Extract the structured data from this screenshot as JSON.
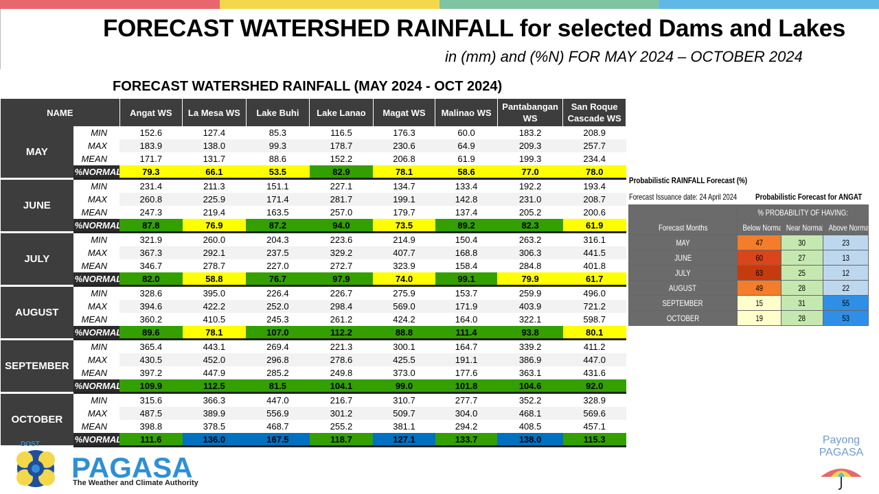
{
  "header": {
    "title": "FORECAST WATERSHED RAINFALL  for selected Dams and Lakes",
    "subtitle": "in (mm) and (%N) FOR MAY 2024 – OCTOBER 2024",
    "table_title": "FORECAST WATERSHED RAINFALL (MAY 2024 - OCT 2024)"
  },
  "topbar_colors": [
    "#e8666d",
    "#f4d84c",
    "#7fc4a0",
    "#5fb8e6"
  ],
  "colors": {
    "yellow": "#ffff00",
    "green": "#33a000",
    "blue": "#0070c0",
    "header_bg": "#3d3d3d"
  },
  "table": {
    "name_header": "NAME",
    "columns": [
      "Angat WS",
      "La Mesa WS",
      "Lake Buhi",
      "Lake Lanao",
      "Magat WS",
      "Malinao WS",
      "Pantabangan WS",
      "San Roque Cascade WS"
    ],
    "stat_labels": [
      "MIN",
      "MAX",
      "MEAN",
      "%NORMAL"
    ],
    "months": [
      {
        "name": "MAY",
        "min": [
          "152.6",
          "127.4",
          "85.3",
          "116.5",
          "176.3",
          "60.0",
          "183.2",
          "208.9"
        ],
        "max": [
          "183.9",
          "138.0",
          "99.3",
          "178.7",
          "230.6",
          "64.9",
          "209.3",
          "257.7"
        ],
        "mean": [
          "171.7",
          "131.7",
          "88.6",
          "152.2",
          "206.8",
          "61.9",
          "199.3",
          "234.4"
        ],
        "normal": [
          "79.3",
          "66.1",
          "53.5",
          "82.9",
          "78.1",
          "58.6",
          "77.0",
          "78.0"
        ],
        "normal_colors": [
          "yellow",
          "yellow",
          "yellow",
          "green",
          "yellow",
          "yellow",
          "yellow",
          "yellow"
        ]
      },
      {
        "name": "JUNE",
        "min": [
          "231.4",
          "211.3",
          "151.1",
          "227.1",
          "134.7",
          "133.4",
          "192.2",
          "193.4"
        ],
        "max": [
          "260.8",
          "225.9",
          "171.4",
          "281.7",
          "199.1",
          "142.8",
          "231.0",
          "208.7"
        ],
        "mean": [
          "247.3",
          "219.4",
          "163.5",
          "257.0",
          "179.7",
          "137.4",
          "205.2",
          "200.6"
        ],
        "normal": [
          "87.8",
          "76.9",
          "87.2",
          "94.0",
          "73.5",
          "89.2",
          "82.3",
          "61.9"
        ],
        "normal_colors": [
          "green",
          "yellow",
          "green",
          "green",
          "yellow",
          "green",
          "green",
          "yellow"
        ]
      },
      {
        "name": "JULY",
        "min": [
          "321.9",
          "260.0",
          "204.3",
          "223.6",
          "214.9",
          "150.4",
          "263.2",
          "316.1"
        ],
        "max": [
          "367.3",
          "292.1",
          "237.5",
          "329.2",
          "407.7",
          "168.8",
          "306.3",
          "441.5"
        ],
        "mean": [
          "346.7",
          "278.7",
          "227.0",
          "272.7",
          "323.9",
          "158.4",
          "284.8",
          "401.8"
        ],
        "normal": [
          "82.0",
          "58.8",
          "76.7",
          "97.9",
          "74.0",
          "99.1",
          "79.9",
          "61.7"
        ],
        "normal_colors": [
          "green",
          "yellow",
          "green",
          "green",
          "yellow",
          "green",
          "yellow",
          "yellow"
        ]
      },
      {
        "name": "AUGUST",
        "min": [
          "328.6",
          "395.0",
          "226.4",
          "226.7",
          "275.9",
          "153.7",
          "259.9",
          "496.0"
        ],
        "max": [
          "394.6",
          "422.2",
          "252.0",
          "298.4",
          "569.0",
          "171.9",
          "403.9",
          "721.2"
        ],
        "mean": [
          "360.2",
          "410.5",
          "245.3",
          "261.2",
          "424.2",
          "164.0",
          "322.1",
          "598.7"
        ],
        "normal": [
          "89.6",
          "78.1",
          "107.0",
          "112.2",
          "88.8",
          "111.4",
          "93.8",
          "80.1"
        ],
        "normal_colors": [
          "green",
          "yellow",
          "green",
          "green",
          "green",
          "green",
          "green",
          "yellow"
        ]
      },
      {
        "name": "SEPTEMBER",
        "min": [
          "365.4",
          "443.1",
          "269.4",
          "221.3",
          "300.1",
          "164.7",
          "339.2",
          "411.2"
        ],
        "max": [
          "430.5",
          "452.0",
          "296.8",
          "278.6",
          "425.5",
          "191.1",
          "386.9",
          "447.0"
        ],
        "mean": [
          "397.2",
          "447.9",
          "285.2",
          "249.8",
          "373.0",
          "177.6",
          "363.1",
          "431.6"
        ],
        "normal": [
          "109.9",
          "112.5",
          "81.5",
          "104.1",
          "99.0",
          "101.8",
          "104.6",
          "92.0"
        ],
        "normal_colors": [
          "green",
          "green",
          "green",
          "green",
          "green",
          "green",
          "green",
          "green"
        ]
      },
      {
        "name": "OCTOBER",
        "min": [
          "315.6",
          "366.3",
          "447.0",
          "216.7",
          "310.7",
          "277.7",
          "352.2",
          "328.9"
        ],
        "max": [
          "487.5",
          "389.9",
          "556.9",
          "301.2",
          "509.7",
          "304.0",
          "468.1",
          "569.6"
        ],
        "mean": [
          "398.8",
          "378.5",
          "468.7",
          "255.2",
          "381.1",
          "294.2",
          "408.5",
          "457.1"
        ],
        "normal": [
          "111.6",
          "136.0",
          "167.5",
          "118.7",
          "127.1",
          "133.7",
          "138.0",
          "115.3"
        ],
        "normal_colors": [
          "green",
          "blue",
          "blue",
          "green",
          "blue",
          "green",
          "blue",
          "green"
        ]
      }
    ]
  },
  "probabilistic": {
    "title": "Probabilistic RAINFALL Forecast (%)",
    "issuance": "Forecast Issuance date: 24 April 2024",
    "angat_title": "Probabilistic Forecast for ANGAT",
    "prob_header": "% PROBABILITY OF HAVING:",
    "col_months": "Forecast Months",
    "col_below": "Below Normal",
    "col_near": "Near Normal",
    "col_above": "Above Normal",
    "rows": [
      {
        "month": "MAY",
        "below": "47",
        "near": "30",
        "above": "23",
        "below_color": "#f47d2b",
        "near_color": "#c5e8b0",
        "above_color": "#bdd7ee"
      },
      {
        "month": "JUNE",
        "below": "60",
        "near": "27",
        "above": "13",
        "below_color": "#d9461c",
        "near_color": "#c5e8b0",
        "above_color": "#bdd7ee"
      },
      {
        "month": "JULY",
        "below": "63",
        "near": "25",
        "above": "12",
        "below_color": "#c43c0e",
        "near_color": "#c5e8b0",
        "above_color": "#bdd7ee"
      },
      {
        "month": "AUGUST",
        "below": "49",
        "near": "28",
        "above": "22",
        "below_color": "#f47d2b",
        "near_color": "#c5e8b0",
        "above_color": "#bdd7ee"
      },
      {
        "month": "SEPTEMBER",
        "below": "15",
        "near": "31",
        "above": "55",
        "below_color": "#ffffcc",
        "near_color": "#c5e8b0",
        "above_color": "#2f8fe6"
      },
      {
        "month": "OCTOBER",
        "below": "19",
        "near": "28",
        "above": "53",
        "below_color": "#ffffcc",
        "near_color": "#c5e8b0",
        "above_color": "#2f8fe6"
      }
    ]
  },
  "footer": {
    "dost": "DOST",
    "logo_text": "PAGASA",
    "logo_tagline": "The Weather and Climate Authority",
    "payong_line1": "Payong",
    "payong_line2": "PAGASA"
  }
}
